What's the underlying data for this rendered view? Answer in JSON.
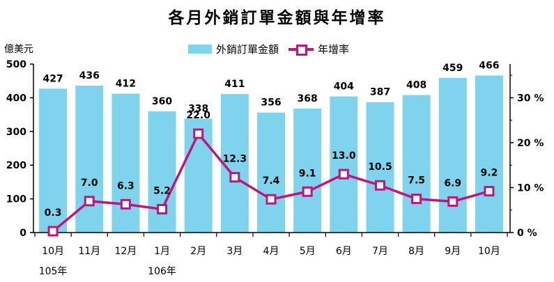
{
  "chart_data": {
    "type": "bar+line",
    "title": "各月外銷訂單金額與年增率",
    "ylabel_left": "億美元",
    "ylim_left": [
      0,
      500
    ],
    "yticks_left": [
      "0",
      "100",
      "200",
      "300",
      "400",
      "500"
    ],
    "ylim_right": [
      0,
      37.5
    ],
    "yticks_right": [
      "0 %",
      "10 %",
      "20 %",
      "30 %"
    ],
    "categories": [
      "10月",
      "11月",
      "12月",
      "1月",
      "2月",
      "3月",
      "4月",
      "5月",
      "6月",
      "7月",
      "8月",
      "9月",
      "10月"
    ],
    "year_labels": [
      {
        "index": 0,
        "label": "105年"
      },
      {
        "index": 3,
        "label": "106年"
      }
    ],
    "series": [
      {
        "name": "外銷訂單金額",
        "kind": "bar",
        "color": "#7fd3ec",
        "values": [
          427,
          436,
          412,
          360,
          338,
          411,
          356,
          368,
          404,
          387,
          408,
          459,
          466
        ],
        "labels": [
          "427",
          "436",
          "412",
          "360",
          "338",
          "411",
          "356",
          "368",
          "404",
          "387",
          "408",
          "459",
          "466"
        ]
      },
      {
        "name": "年增率",
        "kind": "line",
        "color": "#c0157e",
        "values": [
          0.3,
          7.0,
          6.3,
          5.2,
          22.0,
          12.3,
          7.4,
          9.1,
          13.0,
          10.5,
          7.5,
          6.9,
          9.2
        ],
        "labels": [
          "0.3",
          "7.0",
          "6.3",
          "5.2",
          "22.0",
          "12.3",
          "7.4",
          "9.1",
          "13.0",
          "10.5",
          "7.5",
          "6.9",
          "9.2"
        ]
      }
    ],
    "legend_position": "top-center",
    "grid": false
  }
}
